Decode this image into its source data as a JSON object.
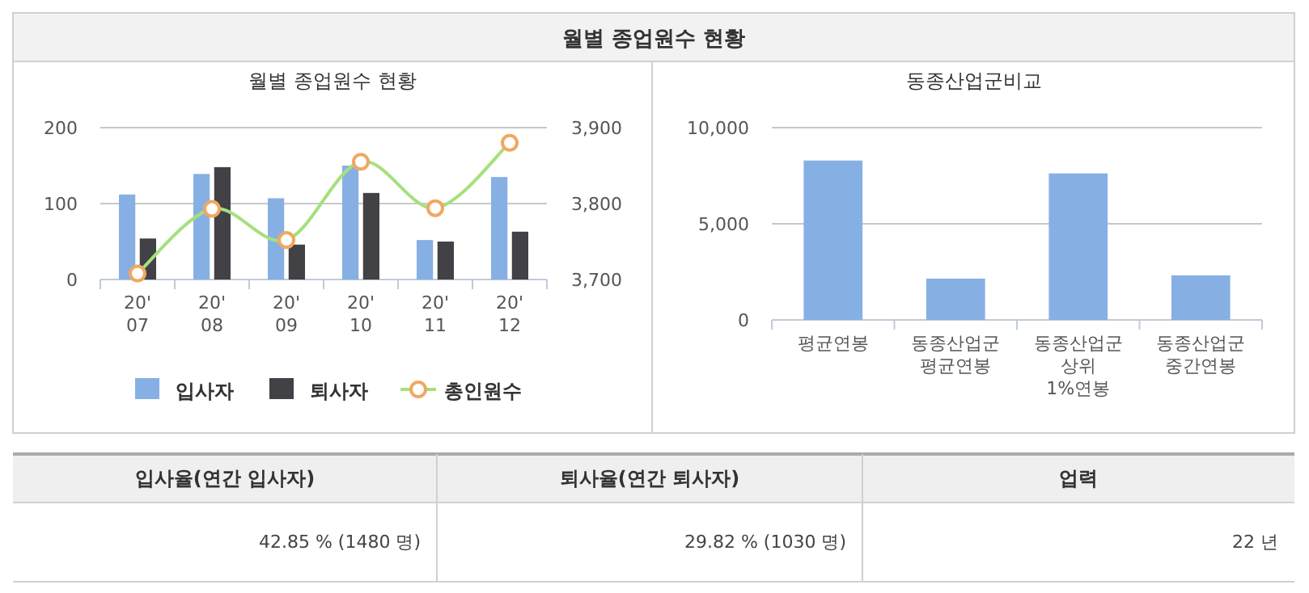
{
  "chart_data": [
    {
      "type": "other",
      "title": "월별 종업원수 현황"
    },
    {
      "type": "bar",
      "title": "월별 종업원수 현황",
      "categories": [
        "20'\n07",
        "20'\n08",
        "20'\n09",
        "20'\n10",
        "20'\n11",
        "20'\n12"
      ],
      "series": [
        {
          "name": "입사자",
          "color": "#86b0e4",
          "values": [
            112,
            139,
            107,
            150,
            52,
            135
          ]
        },
        {
          "name": "퇴사자",
          "color": "#414146",
          "values": [
            54,
            148,
            46,
            114,
            50,
            63
          ]
        },
        {
          "name": "총인원수",
          "type": "line",
          "axis": "y2",
          "color": "#a6e07d",
          "values": [
            3708,
            3793,
            3752,
            3855,
            3794,
            3880
          ]
        }
      ],
      "ylim": [
        0,
        200
      ],
      "yticks": [
        0,
        100,
        200
      ],
      "y2lim": [
        3700,
        3900
      ],
      "y2ticks": [
        {
          "value": 3700,
          "label": "3,700"
        },
        {
          "value": 3800,
          "label": "3,800"
        },
        {
          "value": 3900,
          "label": "3,900"
        }
      ],
      "grid": "y",
      "legend": "bottom",
      "marker": "circle"
    },
    {
      "type": "bar",
      "title": "동종산업군비교",
      "categories": [
        "평균연봉",
        "동종산업군\n평균연봉",
        "동종산업군\n상위\n1%연봉",
        "동종산업군\n중간연봉"
      ],
      "values": [
        8290,
        2150,
        7620,
        2320
      ],
      "color": "#86b0e4",
      "ylim": [
        0,
        10000
      ],
      "yticks": [
        0,
        {
          "value": 5000,
          "label": "5,000"
        },
        {
          "value": 10000,
          "label": "10,000"
        }
      ],
      "grid": "y"
    },
    {
      "type": "other",
      "annotations": [
        "입사율(연간 입사자)",
        "퇴사율(연간 퇴사자)",
        "업력",
        "42.85 % (1480 명)",
        "29.82 % (1030 명)",
        "22 년"
      ]
    }
  ]
}
